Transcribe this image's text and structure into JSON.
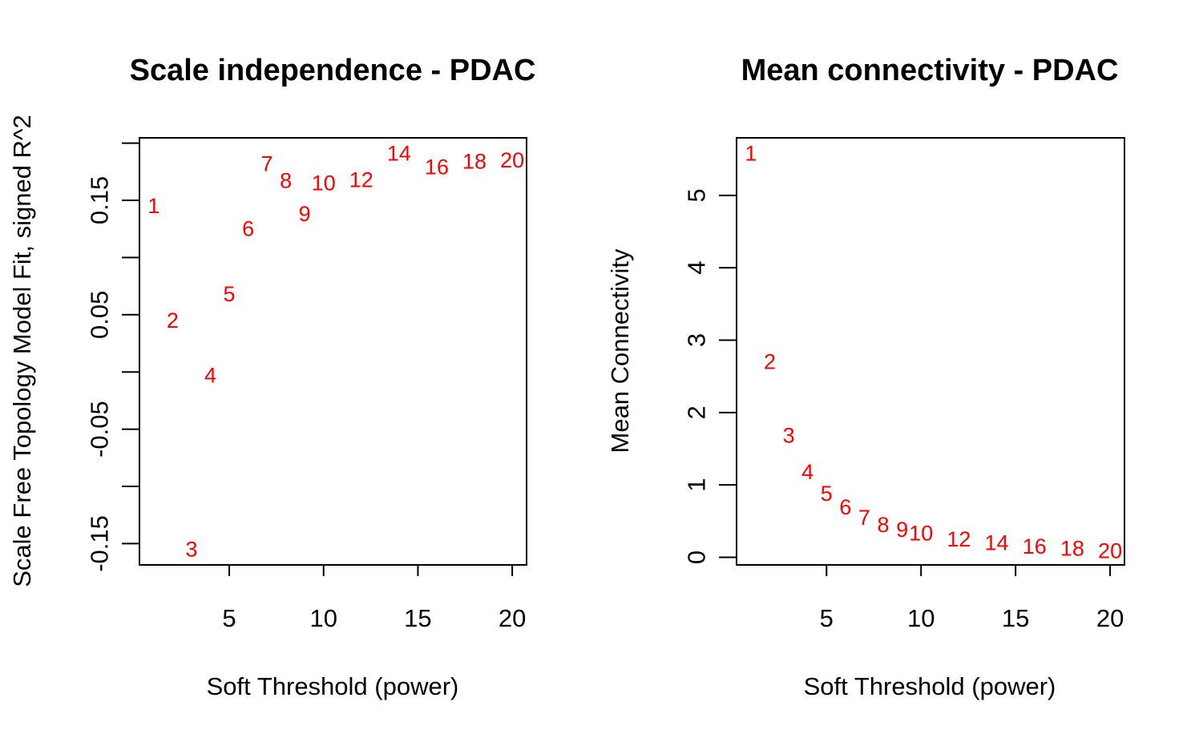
{
  "chart_data": [
    {
      "type": "scatter",
      "title": "Scale independence - PDAC",
      "xlabel": "Soft Threshold (power)",
      "ylabel": "Scale Free Topology Model Fit, signed R^2",
      "xlim": [
        0.24,
        20.76
      ],
      "ylim": [
        -0.1686,
        0.2046
      ],
      "xticks": [
        5,
        10,
        15,
        20
      ],
      "yticks": [
        -0.15,
        -0.1,
        -0.05,
        0,
        0.05,
        0.1,
        0.15,
        0.2
      ],
      "ytick_labels": [
        "-0.15",
        "",
        "-0.05",
        "",
        "0.05",
        "",
        "0.15",
        ""
      ],
      "marker_color": "#ff0000",
      "points": [
        {
          "x": 1,
          "y": 0.145,
          "label": "1"
        },
        {
          "x": 2,
          "y": 0.045,
          "label": "2"
        },
        {
          "x": 3,
          "y": -0.155,
          "label": "3"
        },
        {
          "x": 4,
          "y": -0.003,
          "label": "4"
        },
        {
          "x": 5,
          "y": 0.068,
          "label": "5"
        },
        {
          "x": 6,
          "y": 0.125,
          "label": "6"
        },
        {
          "x": 7,
          "y": 0.182,
          "label": "7"
        },
        {
          "x": 8,
          "y": 0.167,
          "label": "8"
        },
        {
          "x": 9,
          "y": 0.138,
          "label": "9"
        },
        {
          "x": 10,
          "y": 0.165,
          "label": "10"
        },
        {
          "x": 12,
          "y": 0.168,
          "label": "12"
        },
        {
          "x": 14,
          "y": 0.191,
          "label": "14"
        },
        {
          "x": 16,
          "y": 0.179,
          "label": "16"
        },
        {
          "x": 18,
          "y": 0.184,
          "label": "18"
        },
        {
          "x": 20,
          "y": 0.185,
          "label": "20"
        }
      ]
    },
    {
      "type": "scatter",
      "title": "Mean connectivity - PDAC",
      "xlabel": "Soft Threshold (power)",
      "ylabel": "Mean Connectivity",
      "xlim": [
        0.24,
        20.76
      ],
      "ylim": [
        -0.105,
        5.795
      ],
      "xticks": [
        5,
        10,
        15,
        20
      ],
      "yticks": [
        0,
        1,
        2,
        3,
        4,
        5
      ],
      "ytick_labels": [
        "0",
        "1",
        "2",
        "3",
        "4",
        "5"
      ],
      "marker_color": "#ff0000",
      "points": [
        {
          "x": 1,
          "y": 5.58,
          "label": "1"
        },
        {
          "x": 2,
          "y": 2.7,
          "label": "2"
        },
        {
          "x": 3,
          "y": 1.68,
          "label": "3"
        },
        {
          "x": 4,
          "y": 1.18,
          "label": "4"
        },
        {
          "x": 5,
          "y": 0.88,
          "label": "5"
        },
        {
          "x": 6,
          "y": 0.69,
          "label": "6"
        },
        {
          "x": 7,
          "y": 0.55,
          "label": "7"
        },
        {
          "x": 8,
          "y": 0.45,
          "label": "8"
        },
        {
          "x": 9,
          "y": 0.38,
          "label": "9"
        },
        {
          "x": 10,
          "y": 0.33,
          "label": "10"
        },
        {
          "x": 12,
          "y": 0.25,
          "label": "12"
        },
        {
          "x": 14,
          "y": 0.2,
          "label": "14"
        },
        {
          "x": 16,
          "y": 0.15,
          "label": "16"
        },
        {
          "x": 18,
          "y": 0.12,
          "label": "18"
        },
        {
          "x": 20,
          "y": 0.09,
          "label": "20"
        }
      ]
    }
  ]
}
